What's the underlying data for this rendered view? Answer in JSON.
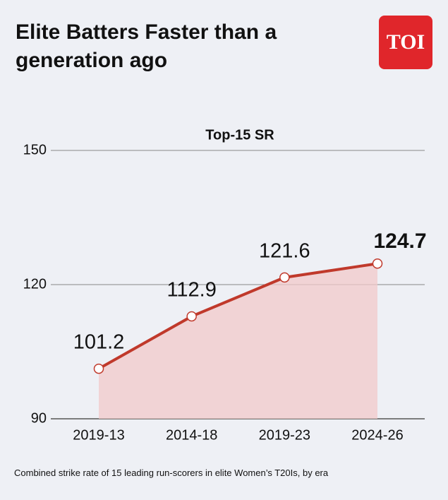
{
  "logo": "TOI",
  "chart_data": {
    "type": "line",
    "title": "Elite Batters Faster than a generation ago",
    "subtitle": "Top-15 SR",
    "caption": "Combined strike rate of 15 leading run-scorers in elite Women’s T20Is, by era",
    "categories": [
      "2019-13",
      "2014-18",
      "2019-23",
      "2024-26"
    ],
    "values": [
      101.2,
      112.9,
      121.6,
      124.7
    ],
    "color": "#c0392b",
    "area_color": "#f2c9c9",
    "ylim": [
      90,
      150
    ],
    "yticks": [
      90,
      120,
      150
    ],
    "grid": true
  }
}
